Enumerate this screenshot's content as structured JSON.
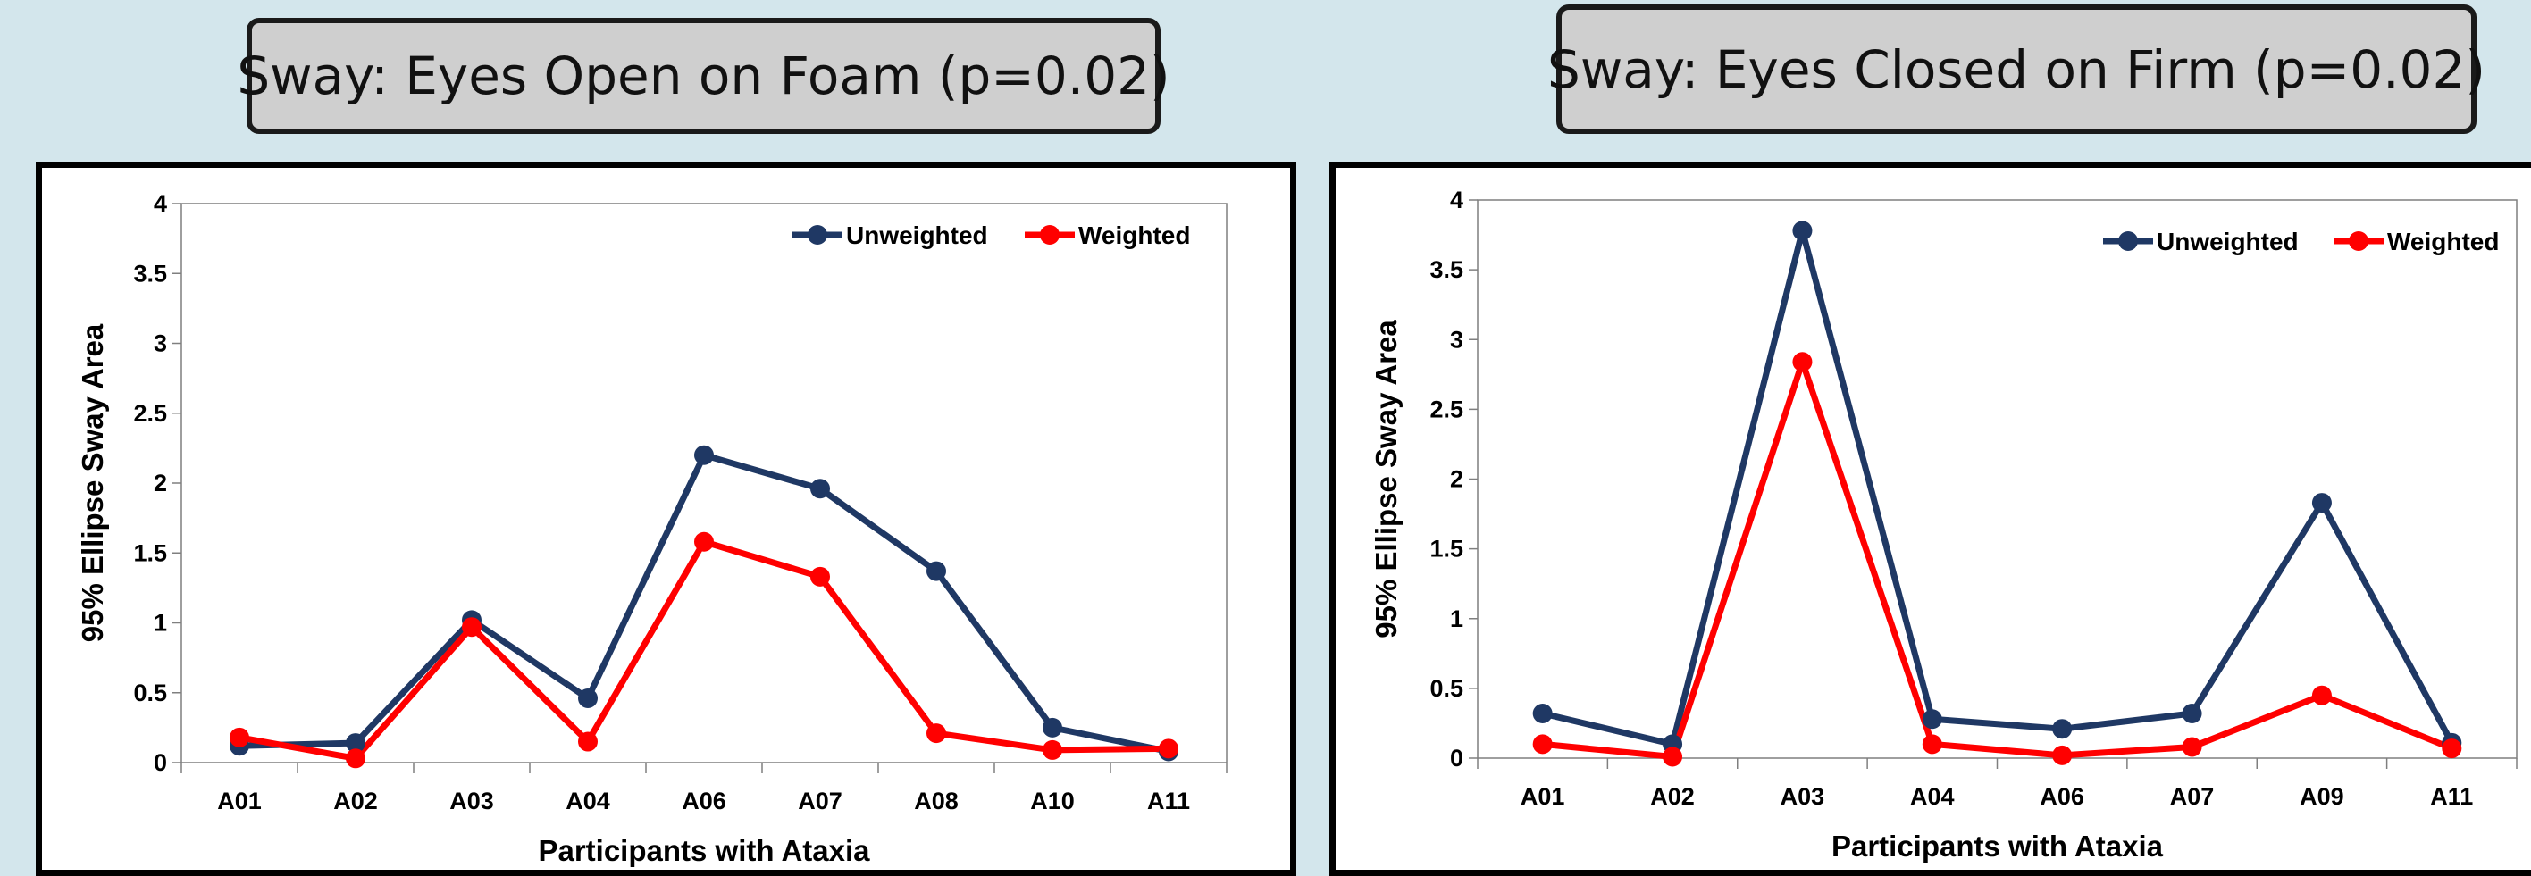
{
  "colors": {
    "background": "#d3e6ec",
    "unweighted": "#1f3864",
    "weighted": "#ff0000",
    "title_box": "#cfcfcf"
  },
  "chart_data": [
    {
      "type": "line",
      "title": "Sway: Eyes Open on Foam (p=0.02)",
      "xlabel": "Participants with Ataxia",
      "ylabel": "95% Ellipse Sway Area",
      "ylim": [
        0,
        4
      ],
      "yticks": [
        "0",
        "0.5",
        "1",
        "1.5",
        "2",
        "2.5",
        "3",
        "3.5",
        "4"
      ],
      "grid": false,
      "legend_position": "top-right",
      "categories": [
        "A01",
        "A02",
        "A03",
        "A04",
        "A06",
        "A07",
        "A08",
        "A10",
        "A11"
      ],
      "series": [
        {
          "name": "Unweighted",
          "color": "#1f3864",
          "values": [
            0.12,
            0.14,
            1.02,
            0.46,
            2.2,
            1.96,
            1.37,
            0.25,
            0.08
          ]
        },
        {
          "name": "Weighted",
          "color": "#ff0000",
          "values": [
            0.18,
            0.03,
            0.97,
            0.15,
            1.58,
            1.33,
            0.21,
            0.09,
            0.1
          ]
        }
      ]
    },
    {
      "type": "line",
      "title": "Sway: Eyes Closed on Firm (p=0.02)",
      "xlabel": "Participants with Ataxia",
      "ylabel": "95% Ellipse Sway Area",
      "ylim": [
        0,
        4
      ],
      "yticks": [
        "0",
        "0.5",
        "1",
        "1.5",
        "2",
        "2.5",
        "3",
        "3.5",
        "4"
      ],
      "grid": false,
      "legend_position": "top-right",
      "categories": [
        "A01",
        "A02",
        "A03",
        "A04",
        "A06",
        "A07",
        "A09",
        "A11"
      ],
      "series": [
        {
          "name": "Unweighted",
          "color": "#1f3864",
          "values": [
            0.32,
            0.1,
            3.78,
            0.28,
            0.21,
            0.32,
            1.83,
            0.11
          ]
        },
        {
          "name": "Weighted",
          "color": "#ff0000",
          "values": [
            0.1,
            0.01,
            2.84,
            0.1,
            0.02,
            0.08,
            0.45,
            0.07
          ]
        }
      ]
    }
  ]
}
